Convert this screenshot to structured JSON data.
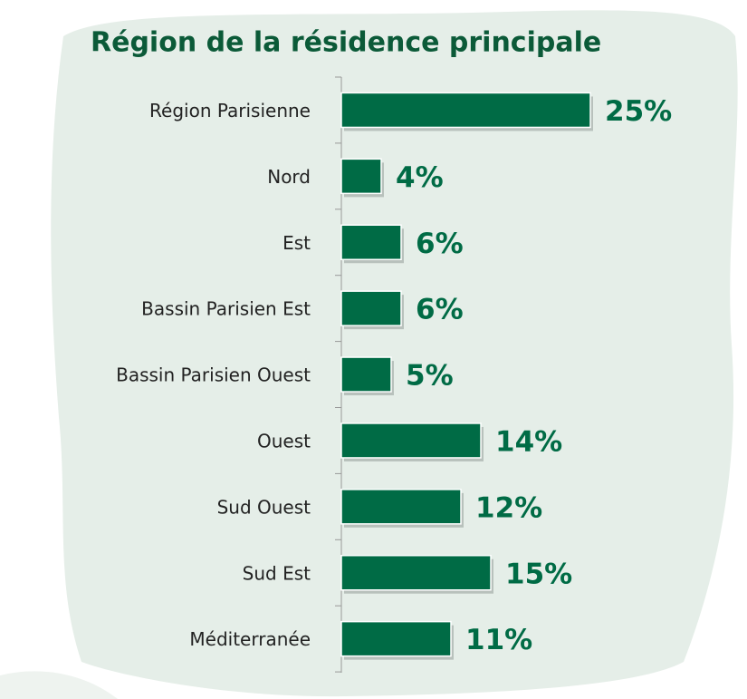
{
  "chart_data": {
    "type": "bar",
    "orientation": "horizontal",
    "title": "Région de la résidence principale",
    "categories": [
      "Région Parisienne",
      "Nord",
      "Est",
      "Bassin Parisien Est",
      "Bassin Parisien Ouest",
      "Ouest",
      "Sud Ouest",
      "Sud Est",
      "Méditerranée"
    ],
    "values": [
      25,
      4,
      6,
      6,
      5,
      14,
      12,
      15,
      11
    ],
    "value_labels": [
      "25%",
      "4%",
      "6%",
      "6%",
      "5%",
      "14%",
      "12%",
      "15%",
      "11%"
    ],
    "color": "#006b45"
  }
}
